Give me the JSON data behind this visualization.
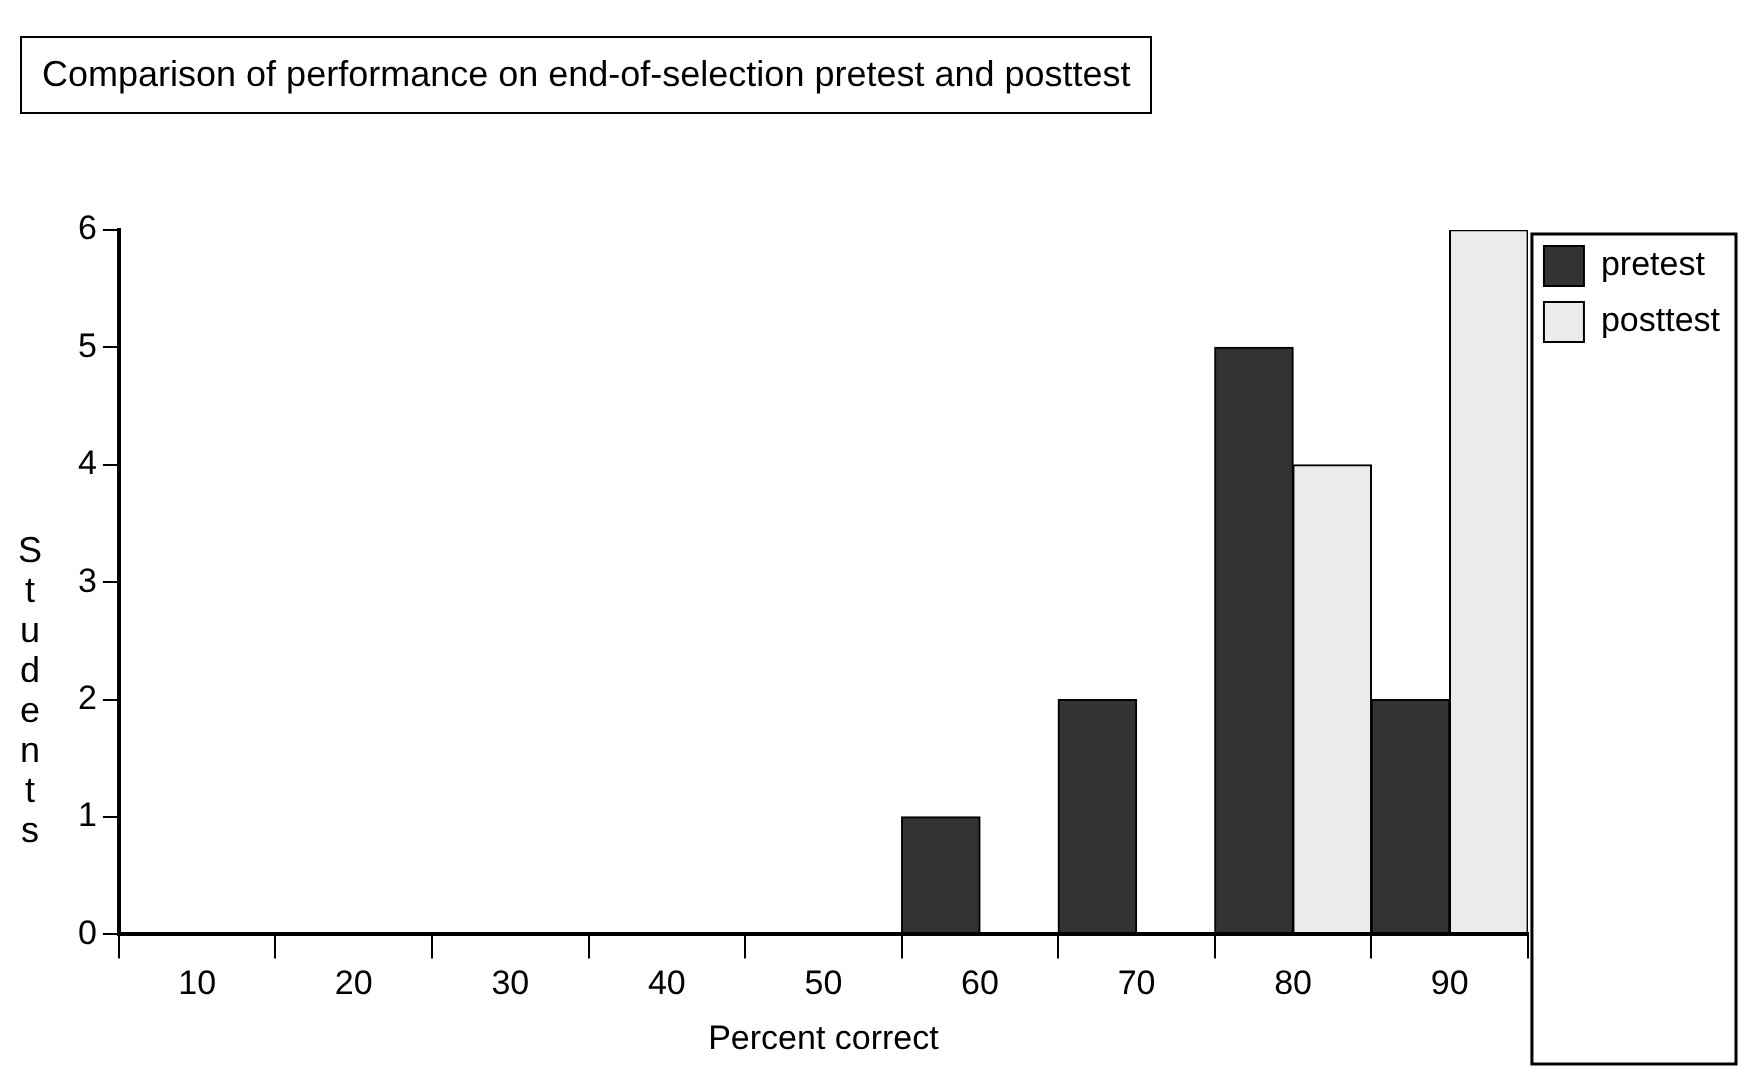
{
  "chart_data": {
    "type": "bar",
    "title": "Comparison of performance on end-of-selection pretest and posttest",
    "xlabel": "Percent correct",
    "ylabel": "Students",
    "categories": [
      "10",
      "20",
      "30",
      "40",
      "50",
      "60",
      "70",
      "80",
      "90"
    ],
    "series": [
      {
        "name": "pretest",
        "color": "#333333",
        "values": [
          0,
          0,
          0,
          0,
          0,
          1,
          2,
          5,
          2
        ]
      },
      {
        "name": "posttest",
        "color": "#ebebeb",
        "values": [
          0,
          0,
          0,
          0,
          0,
          0,
          0,
          4,
          6
        ]
      }
    ],
    "ylim": [
      0,
      6
    ],
    "yticks": [
      0,
      1,
      2,
      3,
      4,
      5,
      6
    ],
    "grid": false,
    "legend": "top right"
  }
}
